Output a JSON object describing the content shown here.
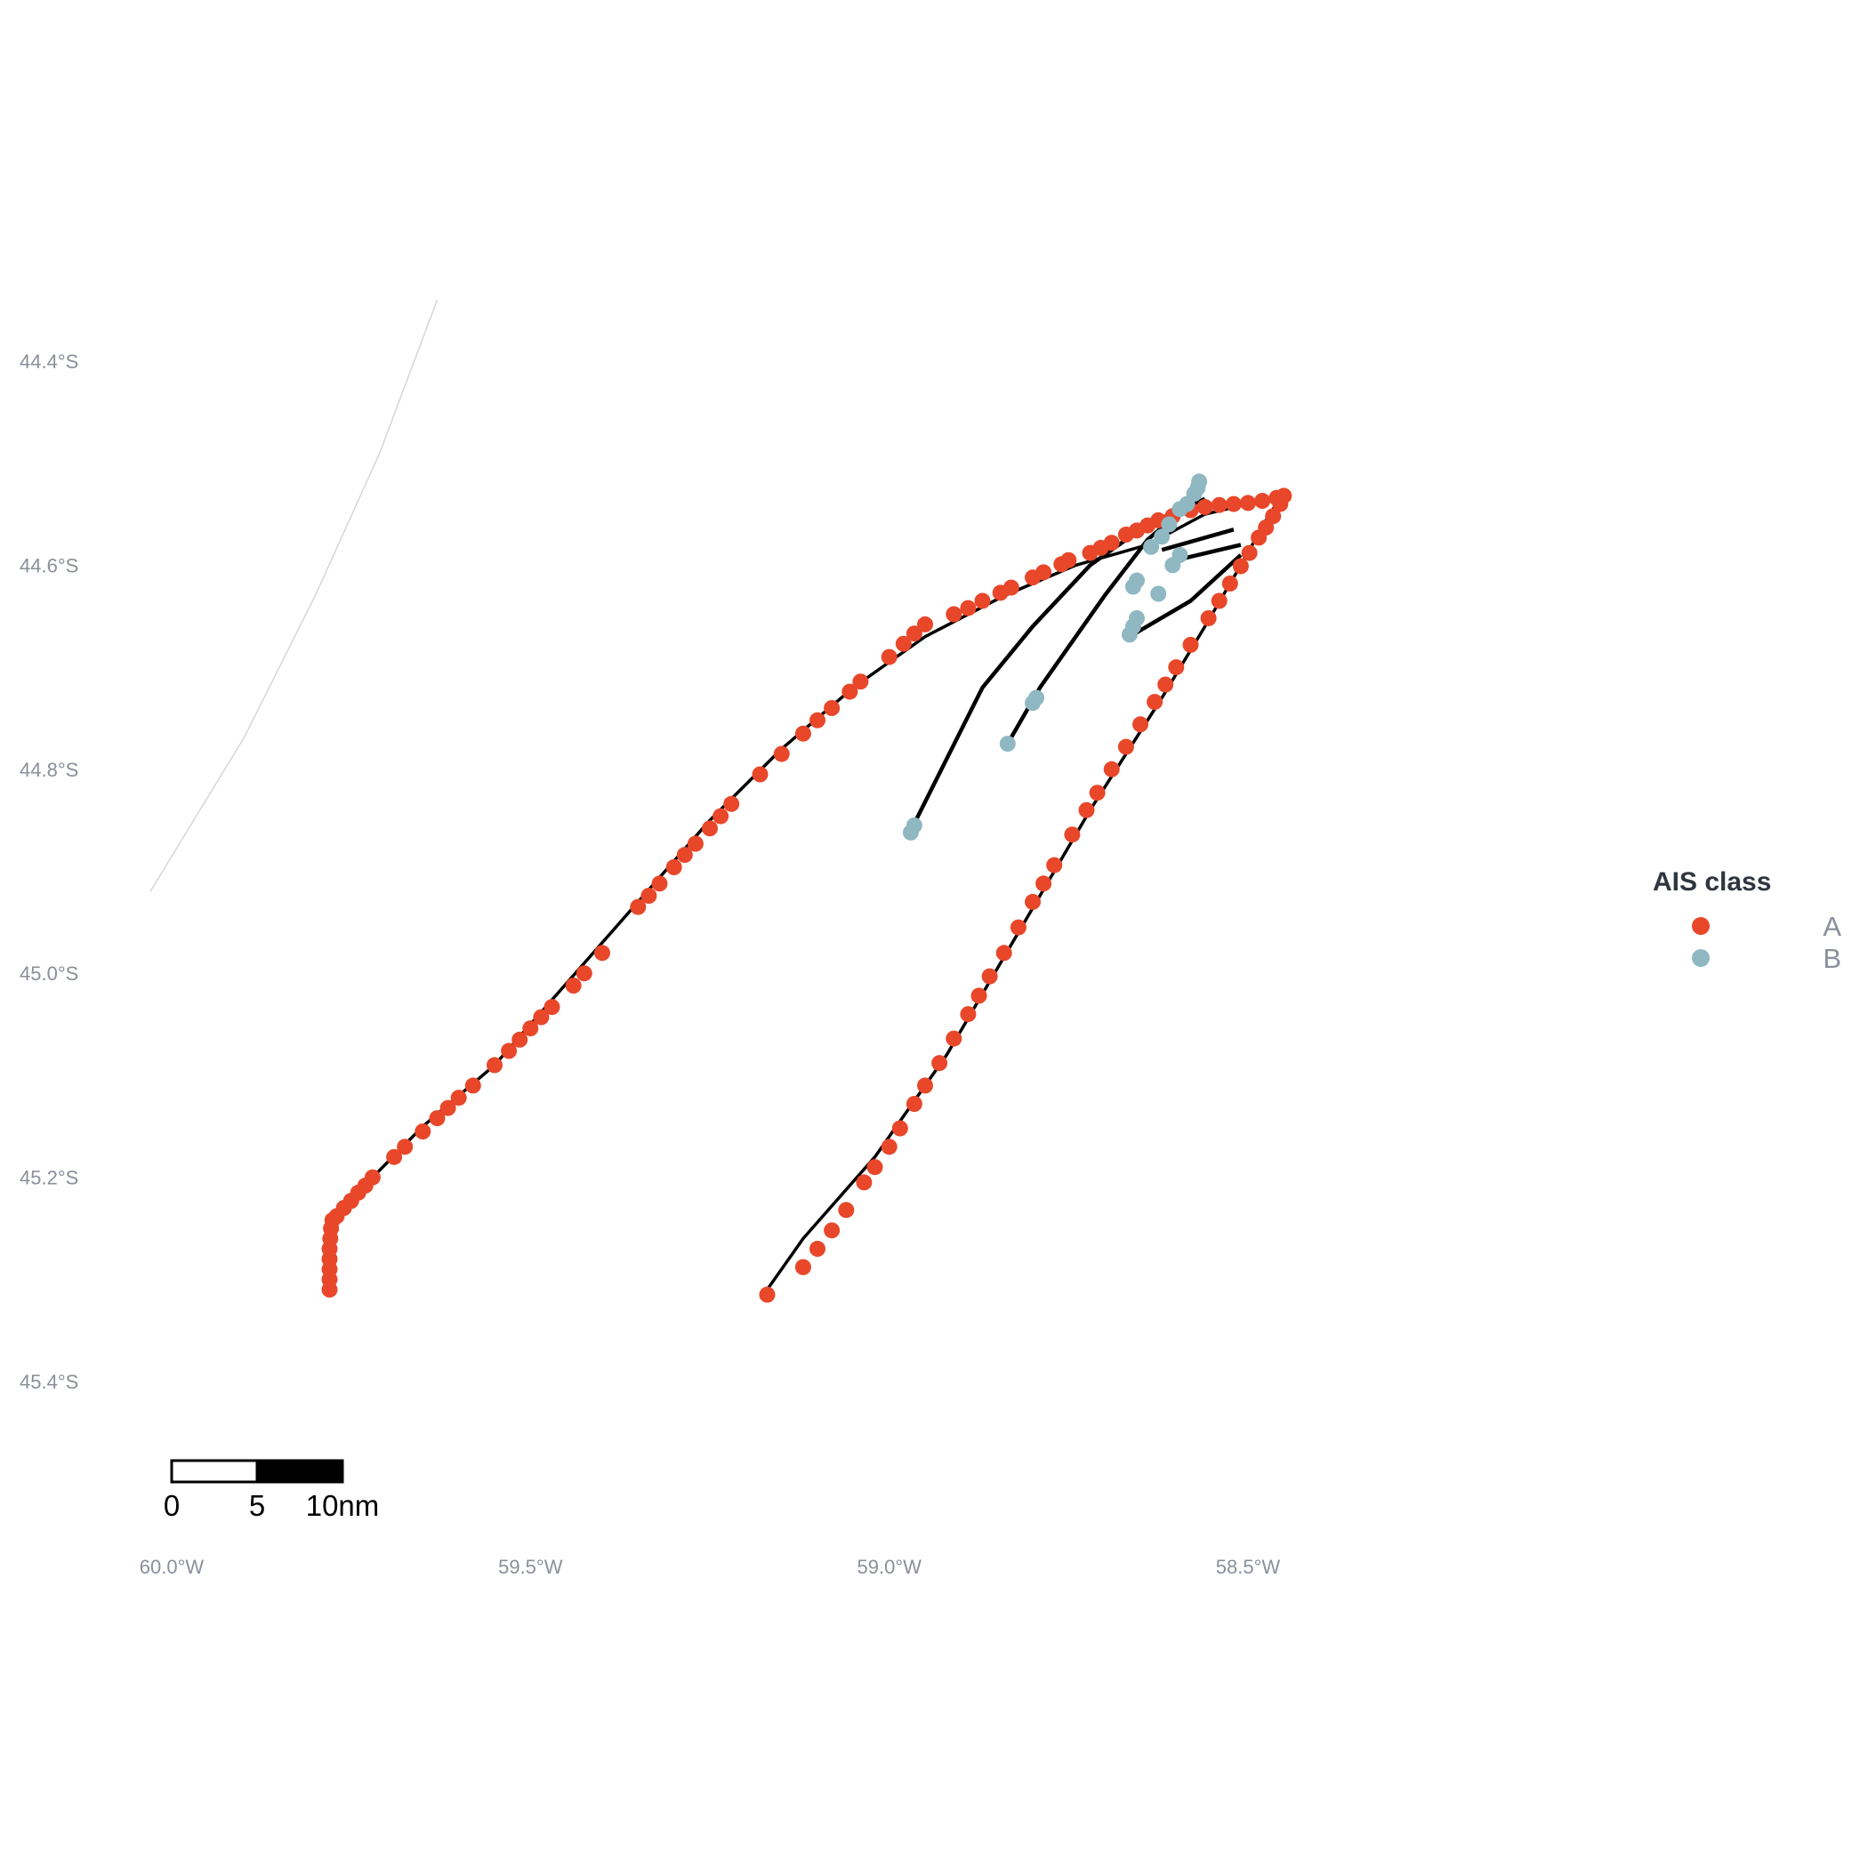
{
  "chart_data": {
    "type": "scatter",
    "title": "",
    "xlabel": "",
    "ylabel": "",
    "xlim": [
      -60.0,
      -58.5
    ],
    "ylim": [
      -45.4,
      -44.4
    ],
    "x_ticks": [
      {
        "value": -60.0,
        "label": "60.0°W"
      },
      {
        "value": -59.5,
        "label": "59.5°W"
      },
      {
        "value": -59.0,
        "label": "59.0°W"
      },
      {
        "value": -58.5,
        "label": "58.5°W"
      }
    ],
    "y_ticks": [
      {
        "value": -44.4,
        "label": "44.4°S"
      },
      {
        "value": -44.6,
        "label": "44.6°S"
      },
      {
        "value": -44.8,
        "label": "44.8°S"
      },
      {
        "value": -45.0,
        "label": "45.0°S"
      },
      {
        "value": -45.2,
        "label": "45.2°S"
      },
      {
        "value": -45.4,
        "label": "45.4°S"
      }
    ],
    "grid": false,
    "legend": {
      "title": "AIS class",
      "placement": "right",
      "entries": [
        {
          "name": "A",
          "color": "#e8472a"
        },
        {
          "name": "B",
          "color": "#8fb8c2"
        }
      ]
    },
    "series": [
      {
        "name": "A",
        "color": "#e8472a",
        "track": [
          [
            -59.78,
            -45.31
          ],
          [
            -59.78,
            -45.27
          ],
          [
            -59.77,
            -45.24
          ],
          [
            -59.72,
            -45.2
          ],
          [
            -59.65,
            -45.15
          ],
          [
            -59.55,
            -45.09
          ],
          [
            -59.45,
            -45.01
          ],
          [
            -59.35,
            -44.93
          ],
          [
            -59.25,
            -44.85
          ],
          [
            -59.15,
            -44.78
          ],
          [
            -59.05,
            -44.72
          ],
          [
            -58.95,
            -44.67
          ],
          [
            -58.84,
            -44.63
          ],
          [
            -58.74,
            -44.6
          ],
          [
            -58.64,
            -44.58
          ],
          [
            -58.56,
            -44.55
          ],
          [
            -58.5,
            -44.54
          ],
          [
            -58.45,
            -44.53
          ],
          [
            -58.47,
            -44.55
          ],
          [
            -58.51,
            -44.6
          ],
          [
            -58.56,
            -44.66
          ],
          [
            -58.62,
            -44.73
          ],
          [
            -58.72,
            -44.84
          ],
          [
            -58.82,
            -44.96
          ],
          [
            -58.92,
            -45.08
          ],
          [
            -59.02,
            -45.18
          ],
          [
            -59.12,
            -45.26
          ],
          [
            -59.17,
            -45.31
          ]
        ],
        "points": [
          [
            -59.78,
            -45.31
          ],
          [
            -59.78,
            -45.3
          ],
          [
            -59.78,
            -45.29
          ],
          [
            -59.78,
            -45.28
          ],
          [
            -59.78,
            -45.27
          ],
          [
            -59.779,
            -45.26
          ],
          [
            -59.778,
            -45.25
          ],
          [
            -59.776,
            -45.242
          ],
          [
            -59.77,
            -45.238
          ],
          [
            -59.76,
            -45.23
          ],
          [
            -59.75,
            -45.223
          ],
          [
            -59.74,
            -45.215
          ],
          [
            -59.73,
            -45.208
          ],
          [
            -59.72,
            -45.2
          ],
          [
            -59.69,
            -45.18
          ],
          [
            -59.675,
            -45.17
          ],
          [
            -59.65,
            -45.155
          ],
          [
            -59.63,
            -45.142
          ],
          [
            -59.615,
            -45.132
          ],
          [
            -59.6,
            -45.122
          ],
          [
            -59.58,
            -45.11
          ],
          [
            -59.55,
            -45.09
          ],
          [
            -59.53,
            -45.076
          ],
          [
            -59.515,
            -45.065
          ],
          [
            -59.5,
            -45.054
          ],
          [
            -59.485,
            -45.043
          ],
          [
            -59.47,
            -45.033
          ],
          [
            -59.44,
            -45.012
          ],
          [
            -59.425,
            -45.0
          ],
          [
            -59.4,
            -44.98
          ],
          [
            -59.35,
            -44.935
          ],
          [
            -59.335,
            -44.924
          ],
          [
            -59.32,
            -44.912
          ],
          [
            -59.3,
            -44.896
          ],
          [
            -59.285,
            -44.884
          ],
          [
            -59.27,
            -44.873
          ],
          [
            -59.25,
            -44.858
          ],
          [
            -59.235,
            -44.846
          ],
          [
            -59.22,
            -44.834
          ],
          [
            -59.18,
            -44.805
          ],
          [
            -59.15,
            -44.785
          ],
          [
            -59.12,
            -44.765
          ],
          [
            -59.1,
            -44.752
          ],
          [
            -59.08,
            -44.74
          ],
          [
            -59.055,
            -44.724
          ],
          [
            -59.04,
            -44.714
          ],
          [
            -59.0,
            -44.69
          ],
          [
            -58.98,
            -44.677
          ],
          [
            -58.965,
            -44.667
          ],
          [
            -58.95,
            -44.658
          ],
          [
            -58.91,
            -44.648
          ],
          [
            -58.89,
            -44.642
          ],
          [
            -58.87,
            -44.635
          ],
          [
            -58.845,
            -44.627
          ],
          [
            -58.83,
            -44.622
          ],
          [
            -58.8,
            -44.612
          ],
          [
            -58.785,
            -44.607
          ],
          [
            -58.76,
            -44.599
          ],
          [
            -58.75,
            -44.595
          ],
          [
            -58.72,
            -44.588
          ],
          [
            -58.705,
            -44.583
          ],
          [
            -58.69,
            -44.578
          ],
          [
            -58.67,
            -44.57
          ],
          [
            -58.655,
            -44.566
          ],
          [
            -58.64,
            -44.561
          ],
          [
            -58.625,
            -44.556
          ],
          [
            -58.605,
            -44.552
          ],
          [
            -58.58,
            -44.546
          ],
          [
            -58.56,
            -44.543
          ],
          [
            -58.54,
            -44.541
          ],
          [
            -58.52,
            -44.54
          ],
          [
            -58.5,
            -44.539
          ],
          [
            -58.48,
            -44.537
          ],
          [
            -58.46,
            -44.534
          ],
          [
            -58.45,
            -44.532
          ],
          [
            -58.455,
            -44.54
          ],
          [
            -58.465,
            -44.552
          ],
          [
            -58.475,
            -44.563
          ],
          [
            -58.485,
            -44.573
          ],
          [
            -58.498,
            -44.588
          ],
          [
            -58.51,
            -44.601
          ],
          [
            -58.525,
            -44.618
          ],
          [
            -58.54,
            -44.635
          ],
          [
            -58.555,
            -44.652
          ],
          [
            -58.58,
            -44.678
          ],
          [
            -58.6,
            -44.7
          ],
          [
            -58.615,
            -44.717
          ],
          [
            -58.63,
            -44.734
          ],
          [
            -58.65,
            -44.756
          ],
          [
            -58.67,
            -44.778
          ],
          [
            -58.69,
            -44.8
          ],
          [
            -58.71,
            -44.823
          ],
          [
            -58.725,
            -44.84
          ],
          [
            -58.745,
            -44.864
          ],
          [
            -58.77,
            -44.894
          ],
          [
            -58.785,
            -44.912
          ],
          [
            -58.8,
            -44.93
          ],
          [
            -58.82,
            -44.955
          ],
          [
            -58.84,
            -44.98
          ],
          [
            -58.86,
            -45.003
          ],
          [
            -58.875,
            -45.022
          ],
          [
            -58.89,
            -45.04
          ],
          [
            -58.91,
            -45.064
          ],
          [
            -58.93,
            -45.088
          ],
          [
            -58.95,
            -45.11
          ],
          [
            -58.965,
            -45.128
          ],
          [
            -58.985,
            -45.152
          ],
          [
            -59.0,
            -45.17
          ],
          [
            -59.02,
            -45.19
          ],
          [
            -59.035,
            -45.205
          ],
          [
            -59.06,
            -45.232
          ],
          [
            -59.08,
            -45.252
          ],
          [
            -59.1,
            -45.27
          ],
          [
            -59.12,
            -45.288
          ],
          [
            -59.17,
            -45.315
          ]
        ]
      },
      {
        "name": "B",
        "color": "#8fb8c2",
        "tracks": [
          [
            [
              -58.97,
              -44.86
            ],
            [
              -58.92,
              -44.79
            ],
            [
              -58.87,
              -44.72
            ],
            [
              -58.8,
              -44.66
            ],
            [
              -58.72,
              -44.6
            ],
            [
              -58.64,
              -44.56
            ],
            [
              -58.56,
              -44.535
            ]
          ],
          [
            [
              -58.835,
              -44.775
            ],
            [
              -58.79,
              -44.72
            ],
            [
              -58.75,
              -44.68
            ],
            [
              -58.7,
              -44.63
            ],
            [
              -58.64,
              -44.575
            ],
            [
              -58.59,
              -44.545
            ]
          ],
          [
            [
              -58.62,
              -44.585
            ],
            [
              -58.52,
              -44.565
            ]
          ],
          [
            [
              -58.6,
              -44.595
            ],
            [
              -58.51,
              -44.58
            ]
          ],
          [
            [
              -58.665,
              -44.67
            ],
            [
              -58.58,
              -44.635
            ],
            [
              -58.51,
              -44.59
            ]
          ]
        ],
        "points": [
          [
            -58.97,
            -44.862
          ],
          [
            -58.965,
            -44.855
          ],
          [
            -58.835,
            -44.775
          ],
          [
            -58.8,
            -44.735
          ],
          [
            -58.795,
            -44.73
          ],
          [
            -58.66,
            -44.621
          ],
          [
            -58.655,
            -44.615
          ],
          [
            -58.665,
            -44.668
          ],
          [
            -58.66,
            -44.66
          ],
          [
            -58.655,
            -44.652
          ],
          [
            -58.635,
            -44.582
          ],
          [
            -58.62,
            -44.572
          ],
          [
            -58.61,
            -44.56
          ],
          [
            -58.595,
            -44.545
          ],
          [
            -58.585,
            -44.54
          ],
          [
            -58.575,
            -44.53
          ],
          [
            -58.57,
            -44.524
          ],
          [
            -58.568,
            -44.518
          ],
          [
            -58.605,
            -44.6
          ],
          [
            -58.595,
            -44.59
          ],
          [
            -58.625,
            -44.628
          ]
        ]
      }
    ]
  },
  "basemap": {
    "coastline": [
      [
        -59.63,
        -44.34
      ],
      [
        -59.71,
        -44.49
      ],
      [
        -59.8,
        -44.63
      ],
      [
        -59.9,
        -44.77
      ],
      [
        -60.03,
        -44.92
      ]
    ],
    "coastline_color": "#d6d6d6",
    "track_color": "#000000"
  },
  "scale_bar": {
    "labels": [
      "0",
      "5",
      "10nm"
    ],
    "fill_colors": [
      "#ffffff",
      "#000000"
    ]
  }
}
